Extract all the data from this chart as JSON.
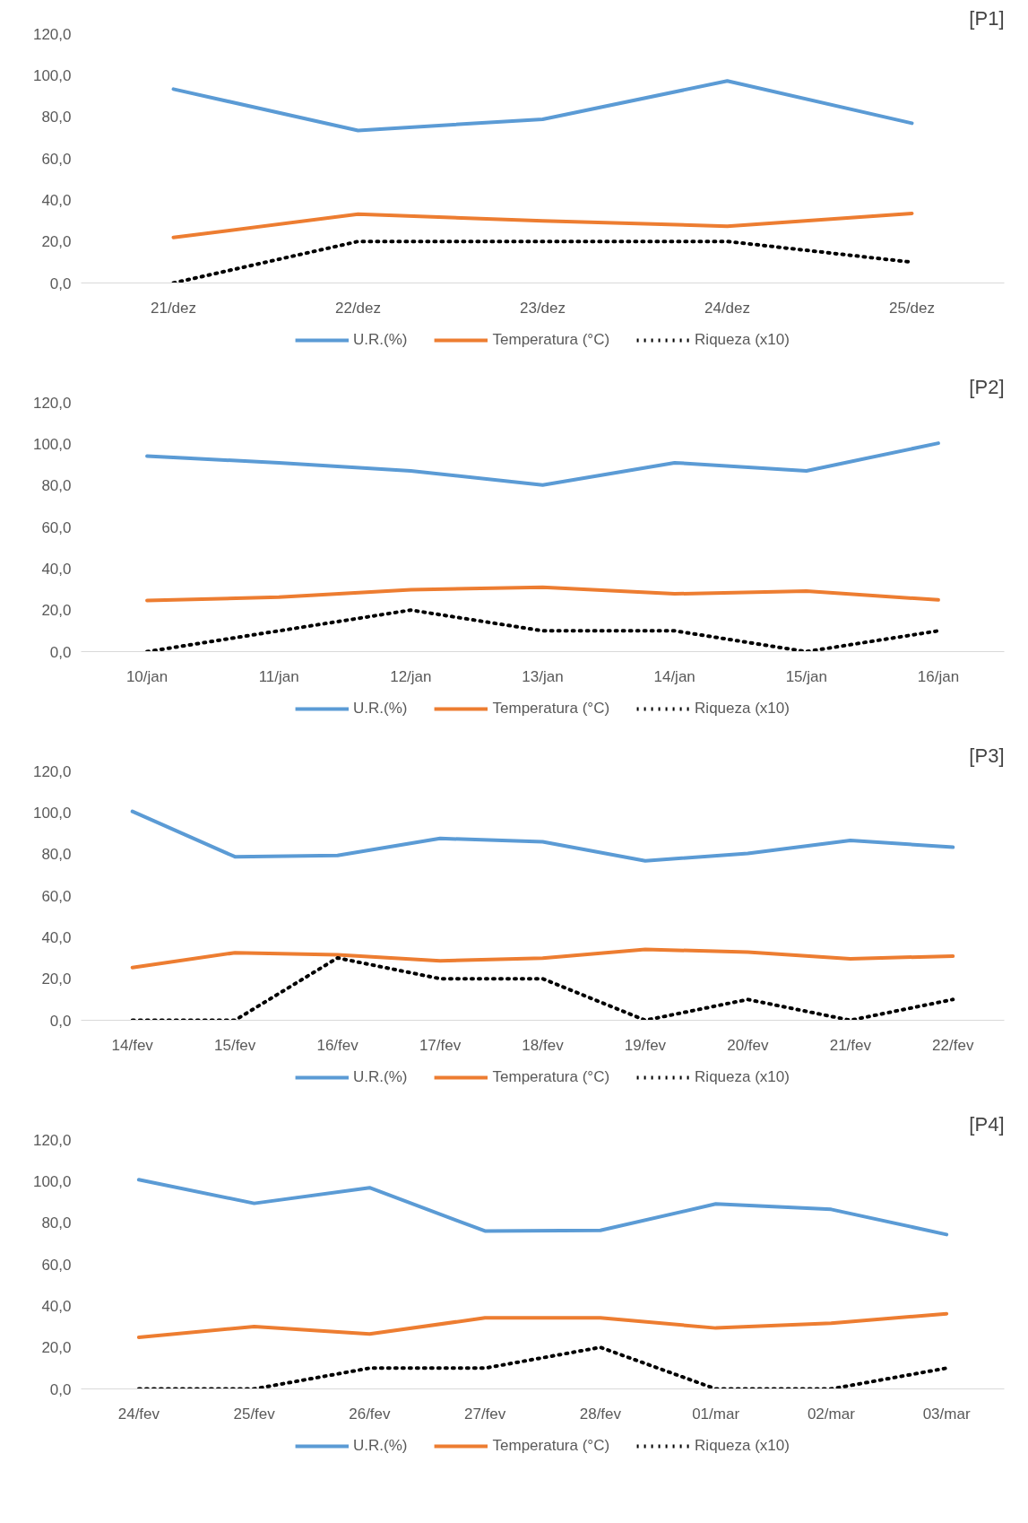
{
  "chart_data": [
    {
      "type": "line",
      "title": "[P1]",
      "categories": [
        "21/dez",
        "22/dez",
        "23/dez",
        "24/dez",
        "25/dez"
      ],
      "ylim": [
        0,
        120
      ],
      "yticks": [
        {
          "value": 0,
          "label": "0,0"
        },
        {
          "value": 20,
          "label": "20,0"
        },
        {
          "value": 40,
          "label": "40,0"
        },
        {
          "value": 60,
          "label": "60,0"
        },
        {
          "value": 80,
          "label": "80,0"
        },
        {
          "value": 100,
          "label": "100,0"
        },
        {
          "value": 120,
          "label": "120,0"
        }
      ],
      "legend": "bottom",
      "grid": false,
      "series": [
        {
          "name": "U.R.(%)",
          "color": "#5b9bd5",
          "line_style": "solid",
          "values": [
            93.3,
            73.4,
            78.8,
            97.2,
            76.9
          ]
        },
        {
          "name": "Temperatura (°C)",
          "color": "#ed7d31",
          "line_style": "solid",
          "values": [
            21.9,
            33.1,
            29.9,
            27.3,
            33.5
          ]
        },
        {
          "name": "Riqueza (x10)",
          "color": "#000000",
          "line_style": "dotted",
          "values": [
            0,
            20,
            20,
            20,
            10
          ]
        }
      ]
    },
    {
      "type": "line",
      "title": "[P2]",
      "categories": [
        "10/jan",
        "11/jan",
        "12/jan",
        "13/jan",
        "14/jan",
        "15/jan",
        "16/jan"
      ],
      "ylim": [
        0,
        120
      ],
      "yticks": [
        {
          "value": 0,
          "label": "0,0"
        },
        {
          "value": 20,
          "label": "20,0"
        },
        {
          "value": 40,
          "label": "40,0"
        },
        {
          "value": 60,
          "label": "60,0"
        },
        {
          "value": 80,
          "label": "80,0"
        },
        {
          "value": 100,
          "label": "100,0"
        },
        {
          "value": 120,
          "label": "120,0"
        }
      ],
      "legend": "bottom",
      "grid": false,
      "series": [
        {
          "name": "U.R.(%)",
          "color": "#5b9bd5",
          "line_style": "solid",
          "values": [
            94.1,
            90.9,
            87.0,
            80.2,
            90.9,
            87.0,
            100.3
          ]
        },
        {
          "name": "Temperatura (°C)",
          "color": "#ed7d31",
          "line_style": "solid",
          "values": [
            24.6,
            26.2,
            29.8,
            31.0,
            27.8,
            29.1,
            24.9
          ]
        },
        {
          "name": "Riqueza (x10)",
          "color": "#000000",
          "line_style": "dotted",
          "values": [
            0,
            10,
            20,
            10,
            10,
            0,
            10
          ]
        }
      ]
    },
    {
      "type": "line",
      "title": "[P3]",
      "categories": [
        "14/fev",
        "15/fev",
        "16/fev",
        "17/fev",
        "18/fev",
        "19/fev",
        "20/fev",
        "21/fev",
        "22/fev"
      ],
      "ylim": [
        0,
        120
      ],
      "yticks": [
        {
          "value": 0,
          "label": "0,0"
        },
        {
          "value": 20,
          "label": "20,0"
        },
        {
          "value": 40,
          "label": "40,0"
        },
        {
          "value": 60,
          "label": "60,0"
        },
        {
          "value": 80,
          "label": "80,0"
        },
        {
          "value": 100,
          "label": "100,0"
        },
        {
          "value": 120,
          "label": "120,0"
        }
      ],
      "legend": "bottom",
      "grid": false,
      "series": [
        {
          "name": "U.R.(%)",
          "color": "#5b9bd5",
          "line_style": "solid",
          "values": [
            100.5,
            78.7,
            79.3,
            87.5,
            85.9,
            76.7,
            80.3,
            86.5,
            83.3
          ]
        },
        {
          "name": "Temperatura (°C)",
          "color": "#ed7d31",
          "line_style": "solid",
          "values": [
            25.4,
            32.5,
            31.5,
            28.6,
            29.9,
            34.1,
            32.8,
            29.6,
            30.9
          ]
        },
        {
          "name": "Riqueza (x10)",
          "color": "#000000",
          "line_style": "dotted",
          "values": [
            0,
            0,
            30,
            20,
            20,
            0,
            10,
            0,
            10
          ]
        }
      ]
    },
    {
      "type": "line",
      "title": "[P4]",
      "categories": [
        "24/fev",
        "25/fev",
        "26/fev",
        "27/fev",
        "28/fev",
        "01/mar",
        "02/mar",
        "03/mar"
      ],
      "ylim": [
        0,
        120
      ],
      "yticks": [
        {
          "value": 0,
          "label": "0,0"
        },
        {
          "value": 20,
          "label": "20,0"
        },
        {
          "value": 40,
          "label": "40,0"
        },
        {
          "value": 60,
          "label": "60,0"
        },
        {
          "value": 80,
          "label": "80,0"
        },
        {
          "value": 100,
          "label": "100,0"
        },
        {
          "value": 120,
          "label": "120,0"
        }
      ],
      "legend": "bottom",
      "grid": false,
      "series": [
        {
          "name": "U.R.(%)",
          "color": "#5b9bd5",
          "line_style": "solid",
          "values": [
            100.7,
            89.3,
            96.8,
            76.0,
            76.3,
            89.0,
            86.4,
            74.3
          ]
        },
        {
          "name": "Temperatura (°C)",
          "color": "#ed7d31",
          "line_style": "solid",
          "values": [
            24.8,
            30.0,
            26.4,
            34.2,
            34.2,
            29.3,
            31.6,
            36.2
          ]
        },
        {
          "name": "Riqueza (x10)",
          "color": "#000000",
          "line_style": "dotted",
          "values": [
            0,
            0,
            10,
            10,
            20,
            0,
            0,
            10
          ]
        }
      ]
    }
  ]
}
